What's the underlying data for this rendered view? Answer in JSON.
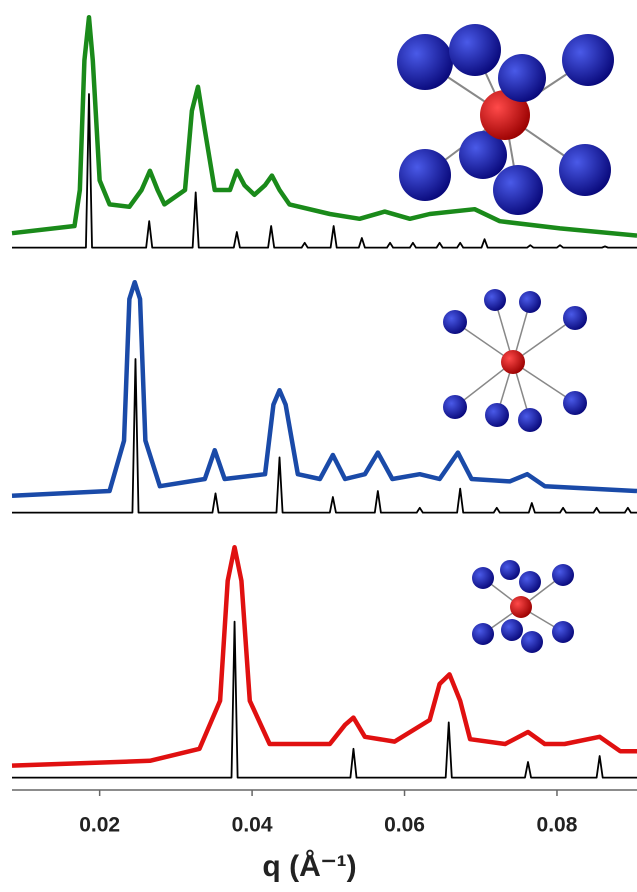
{
  "chart_data": [
    {
      "type": "line",
      "xlim": [
        0.0085,
        0.0905
      ],
      "ylim": [
        0,
        1
      ],
      "series": [
        {
          "color": "#1a8a1a",
          "x": [
            0.0085,
            0.0167,
            0.0174,
            0.018,
            0.0186,
            0.0191,
            0.02,
            0.0213,
            0.0239,
            0.0255,
            0.0266,
            0.0276,
            0.0285,
            0.0312,
            0.0321,
            0.0329,
            0.0338,
            0.0351,
            0.0371,
            0.038,
            0.039,
            0.0403,
            0.0417,
            0.0426,
            0.0436,
            0.0449,
            0.0502,
            0.0541,
            0.0574,
            0.0607,
            0.0633,
            0.0692,
            0.0725,
            0.0804,
            0.0905
          ],
          "values": [
            0.07,
            0.1,
            0.25,
            0.79,
            0.97,
            0.79,
            0.29,
            0.19,
            0.18,
            0.25,
            0.33,
            0.25,
            0.19,
            0.25,
            0.58,
            0.68,
            0.5,
            0.25,
            0.25,
            0.33,
            0.27,
            0.23,
            0.27,
            0.31,
            0.25,
            0.19,
            0.15,
            0.13,
            0.16,
            0.13,
            0.15,
            0.17,
            0.12,
            0.09,
            0.06
          ]
        },
        {
          "color": "#000000",
          "x": [
            0.0085,
            0.0182,
            0.0186,
            0.019,
            0.0261,
            0.0265,
            0.0269,
            0.0322,
            0.0326,
            0.033,
            0.0376,
            0.038,
            0.0384,
            0.0421,
            0.0425,
            0.0429,
            0.0465,
            0.0469,
            0.0473,
            0.0503,
            0.0507,
            0.0511,
            0.054,
            0.0544,
            0.0548,
            0.0577,
            0.0581,
            0.0585,
            0.0607,
            0.0611,
            0.0615,
            0.0642,
            0.0646,
            0.065,
            0.0669,
            0.0673,
            0.0677,
            0.0701,
            0.0705,
            0.0709,
            0.0761,
            0.0765,
            0.0769,
            0.08,
            0.0804,
            0.0808,
            0.0859,
            0.0863,
            0.0867,
            0.0905
          ],
          "values": [
            0.01,
            0.01,
            0.65,
            0.01,
            0.01,
            0.12,
            0.01,
            0.01,
            0.24,
            0.01,
            0.01,
            0.075,
            0.01,
            0.01,
            0.1,
            0.01,
            0.01,
            0.03,
            0.01,
            0.01,
            0.1,
            0.01,
            0.01,
            0.05,
            0.01,
            0.01,
            0.03,
            0.01,
            0.01,
            0.03,
            0.01,
            0.01,
            0.03,
            0.01,
            0.01,
            0.03,
            0.01,
            0.01,
            0.045,
            0.01,
            0.01,
            0.02,
            0.01,
            0.01,
            0.02,
            0.01,
            0.01,
            0.015,
            0.01,
            0.01
          ]
        }
      ]
    },
    {
      "type": "line",
      "xlim": [
        0.0085,
        0.0905
      ],
      "ylim": [
        0,
        1
      ],
      "series": [
        {
          "color": "#1a4aa8",
          "x": [
            0.0085,
            0.0213,
            0.0232,
            0.0239,
            0.0246,
            0.0253,
            0.026,
            0.0279,
            0.0338,
            0.0351,
            0.0364,
            0.0417,
            0.0428,
            0.0436,
            0.0444,
            0.046,
            0.0489,
            0.0506,
            0.0522,
            0.0548,
            0.0565,
            0.0584,
            0.062,
            0.0646,
            0.067,
            0.0688,
            0.0738,
            0.0761,
            0.0784,
            0.0905
          ],
          "values": [
            0.08,
            0.1,
            0.31,
            0.9,
            0.97,
            0.9,
            0.31,
            0.12,
            0.15,
            0.27,
            0.15,
            0.17,
            0.46,
            0.52,
            0.46,
            0.17,
            0.15,
            0.25,
            0.15,
            0.17,
            0.26,
            0.15,
            0.17,
            0.15,
            0.26,
            0.15,
            0.14,
            0.17,
            0.12,
            0.1
          ]
        },
        {
          "color": "#000000",
          "x": [
            0.0085,
            0.0243,
            0.0247,
            0.0251,
            0.0348,
            0.0352,
            0.0356,
            0.0432,
            0.0436,
            0.044,
            0.0502,
            0.0506,
            0.051,
            0.0561,
            0.0565,
            0.0569,
            0.0616,
            0.062,
            0.0624,
            0.0669,
            0.0673,
            0.0677,
            0.0717,
            0.0721,
            0.0725,
            0.0763,
            0.0767,
            0.0771,
            0.0804,
            0.0808,
            0.0812,
            0.0848,
            0.0852,
            0.0856,
            0.0889,
            0.0893,
            0.0897,
            0.0905
          ],
          "values": [
            0.01,
            0.01,
            0.65,
            0.01,
            0.01,
            0.09,
            0.01,
            0.01,
            0.24,
            0.01,
            0.01,
            0.075,
            0.01,
            0.01,
            0.1,
            0.01,
            0.01,
            0.03,
            0.01,
            0.01,
            0.11,
            0.01,
            0.01,
            0.03,
            0.01,
            0.01,
            0.05,
            0.01,
            0.01,
            0.03,
            0.01,
            0.01,
            0.03,
            0.01,
            0.01,
            0.03,
            0.01,
            0.01
          ]
        }
      ]
    },
    {
      "type": "line",
      "xlim": [
        0.0085,
        0.0905
      ],
      "ylim": [
        0,
        1
      ],
      "xticks": [
        0.02,
        0.04,
        0.06,
        0.08
      ],
      "xlabel": "q (Å⁻¹)",
      "series": [
        {
          "color": "#e01010",
          "x": [
            0.0085,
            0.0266,
            0.0331,
            0.0358,
            0.0368,
            0.0377,
            0.0386,
            0.0397,
            0.0423,
            0.0502,
            0.0522,
            0.0533,
            0.0548,
            0.0587,
            0.0633,
            0.0646,
            0.0659,
            0.0673,
            0.0686,
            0.0732,
            0.0762,
            0.0784,
            0.081,
            0.0856,
            0.0883,
            0.0905
          ],
          "values": [
            0.06,
            0.08,
            0.13,
            0.33,
            0.83,
            0.97,
            0.83,
            0.33,
            0.15,
            0.15,
            0.23,
            0.26,
            0.18,
            0.16,
            0.25,
            0.4,
            0.44,
            0.33,
            0.17,
            0.15,
            0.2,
            0.15,
            0.15,
            0.18,
            0.12,
            0.12
          ]
        },
        {
          "color": "#000000",
          "x": [
            0.0085,
            0.0373,
            0.0377,
            0.0381,
            0.0529,
            0.0533,
            0.0537,
            0.0654,
            0.0658,
            0.0662,
            0.0758,
            0.0762,
            0.0766,
            0.0852,
            0.0856,
            0.086,
            0.0905
          ],
          "values": [
            0.01,
            0.01,
            0.66,
            0.01,
            0.01,
            0.13,
            0.01,
            0.01,
            0.24,
            0.01,
            0.01,
            0.075,
            0.01,
            0.01,
            0.1,
            0.01,
            0.01
          ]
        }
      ]
    }
  ]
}
